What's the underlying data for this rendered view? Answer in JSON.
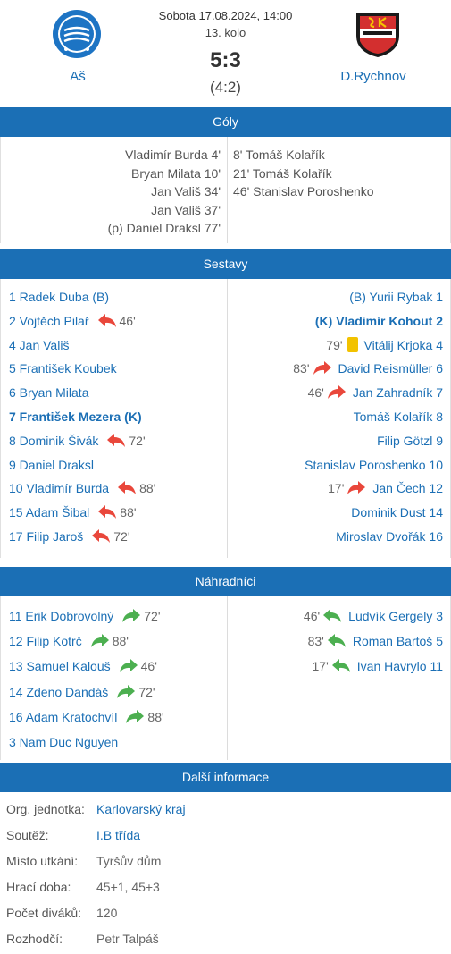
{
  "match": {
    "date": "Sobota 17.08.2024, 14:00",
    "round": "13. kolo",
    "score": "5:3",
    "halftime": "(4:2)",
    "home_team": "Aš",
    "away_team": "D.Rychnov"
  },
  "sections": {
    "goals": "Góly",
    "lineups": "Sestavy",
    "subs": "Náhradníci",
    "info": "Další informace"
  },
  "goals": {
    "home": [
      "Vladimír Burda 4'",
      "Bryan Milata 10'",
      "Jan Vališ 34'",
      "Jan Vališ 37'",
      "(p) Daniel Draksl 77'"
    ],
    "away": [
      "8' Tomáš Kolařík",
      "21' Tomáš Kolařík",
      "46' Stanislav Poroshenko"
    ]
  },
  "lineup_home": [
    {
      "name": "1 Radek Duba (B)"
    },
    {
      "name": "2 Vojtěch Pilař",
      "event": "sub-out",
      "minute": "46'"
    },
    {
      "name": "4 Jan Vališ"
    },
    {
      "name": "5 František Koubek"
    },
    {
      "name": "6 Bryan Milata"
    },
    {
      "name": "7 František Mezera (K)",
      "bold": true
    },
    {
      "name": "8 Dominik Šivák",
      "event": "sub-out",
      "minute": "72'"
    },
    {
      "name": "9 Daniel Draksl"
    },
    {
      "name": "10 Vladimír Burda",
      "event": "sub-out",
      "minute": "88'"
    },
    {
      "name": "15 Adam Šibal",
      "event": "sub-out",
      "minute": "88'"
    },
    {
      "name": "17 Filip Jaroš",
      "event": "sub-out",
      "minute": "72'"
    }
  ],
  "lineup_away": [
    {
      "name": "(B) Yurii Rybak 1"
    },
    {
      "name": "(K) Vladimír Kohout 2",
      "bold": true
    },
    {
      "name": "Vitálij Krjoka 4",
      "event": "yellow-card",
      "minute": "79'"
    },
    {
      "name": "David Reismüller 6",
      "event": "sub-out",
      "minute": "83'"
    },
    {
      "name": "Jan Zahradník 7",
      "event": "sub-out",
      "minute": "46'"
    },
    {
      "name": "Tomáš Kolařík 8"
    },
    {
      "name": "Filip Götzl 9"
    },
    {
      "name": "Stanislav Poroshenko 10"
    },
    {
      "name": "Jan Čech 12",
      "event": "sub-out",
      "minute": "17'"
    },
    {
      "name": "Dominik Dust  14"
    },
    {
      "name": "Miroslav Dvořák 16"
    }
  ],
  "subs_home": [
    {
      "name": "11 Erik Dobrovolný",
      "event": "sub-in",
      "minute": "72'"
    },
    {
      "name": "12 Filip Kotrč",
      "event": "sub-in",
      "minute": "88'"
    },
    {
      "name": "13 Samuel Kalouš",
      "event": "sub-in",
      "minute": "46'"
    },
    {
      "name": "14 Zdeno Dandáš",
      "event": "sub-in",
      "minute": "72'"
    },
    {
      "name": "16 Adam Kratochvíl",
      "event": "sub-in",
      "minute": "88'"
    },
    {
      "name": "3 Nam Duc Nguyen"
    }
  ],
  "subs_away": [
    {
      "name": "Ludvík Gergely 3",
      "event": "sub-in",
      "minute": "46'"
    },
    {
      "name": "Roman Bartoš 5",
      "event": "sub-in",
      "minute": "83'"
    },
    {
      "name": "Ivan Havrylo 11",
      "event": "sub-in",
      "minute": "17'"
    }
  ],
  "info": [
    {
      "label": "Org. jednotka:",
      "value": "Karlovarský kraj",
      "link": true
    },
    {
      "label": "Soutěž:",
      "value": "I.B třída",
      "link": true
    },
    {
      "label": "Místo utkání:",
      "value": "Tyršův dům",
      "link": false
    },
    {
      "label": "Hrací doba:",
      "value": "45+1, 45+3",
      "link": false
    },
    {
      "label": "Počet diváků:",
      "value": "120",
      "link": false
    },
    {
      "label": "Rozhodčí:",
      "value": "Petr Talpáš",
      "link": false
    }
  ],
  "colors": {
    "accent": "#1b6fb5",
    "sub_out": "#e9473b",
    "sub_in": "#4caf50",
    "yellow_card": "#f2c200"
  }
}
